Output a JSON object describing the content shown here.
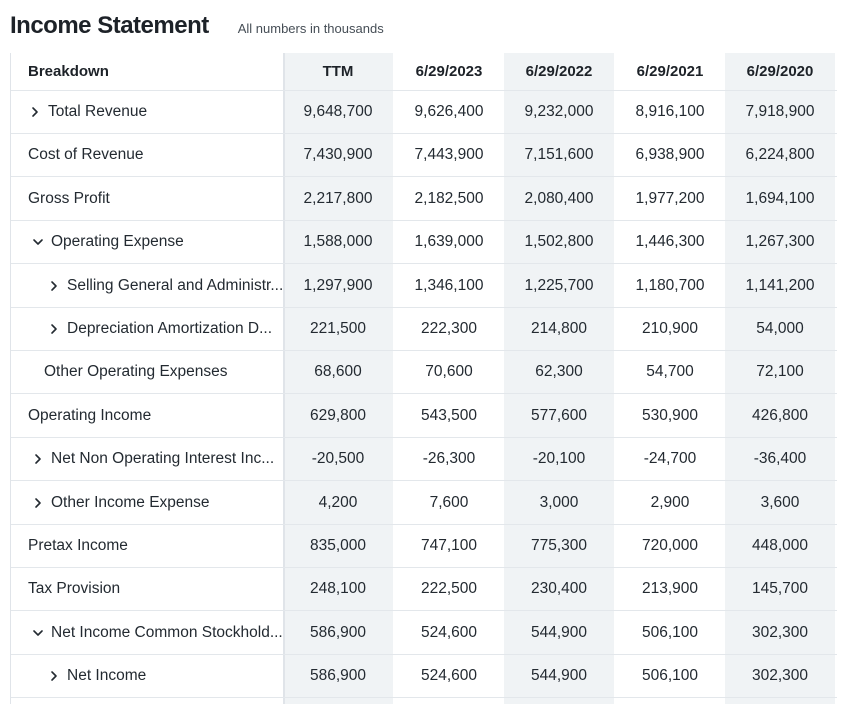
{
  "header": {
    "title": "Income Statement",
    "subtitle": "All numbers in thousands"
  },
  "table": {
    "breakdown_label": "Breakdown",
    "columns": [
      "TTM",
      "6/29/2023",
      "6/29/2022",
      "6/29/2021",
      "6/29/2020"
    ],
    "rows": [
      {
        "label": "Total Revenue",
        "expander": "collapsed",
        "values": [
          "9,648,700",
          "9,626,400",
          "9,232,000",
          "8,916,100",
          "7,918,900"
        ]
      },
      {
        "label": "Cost of Revenue",
        "expander": "none",
        "values": [
          "7,430,900",
          "7,443,900",
          "7,151,600",
          "6,938,900",
          "6,224,800"
        ]
      },
      {
        "label": "Gross Profit",
        "expander": "none",
        "values": [
          "2,217,800",
          "2,182,500",
          "2,080,400",
          "1,977,200",
          "1,694,100"
        ]
      },
      {
        "label": "Operating Expense",
        "expander": "expanded",
        "values": [
          "1,588,000",
          "1,639,000",
          "1,502,800",
          "1,446,300",
          "1,267,300"
        ]
      },
      {
        "label": "Selling General and Administr...",
        "expander": "collapsed",
        "values": [
          "1,297,900",
          "1,346,100",
          "1,225,700",
          "1,180,700",
          "1,141,200"
        ]
      },
      {
        "label": "Depreciation Amortization D...",
        "expander": "collapsed",
        "values": [
          "221,500",
          "222,300",
          "214,800",
          "210,900",
          "54,000"
        ]
      },
      {
        "label": "Other Operating Expenses",
        "expander": "none",
        "values": [
          "68,600",
          "70,600",
          "62,300",
          "54,700",
          "72,100"
        ]
      },
      {
        "label": "Operating Income",
        "expander": "none",
        "values": [
          "629,800",
          "543,500",
          "577,600",
          "530,900",
          "426,800"
        ]
      },
      {
        "label": "Net Non Operating Interest Inc...",
        "expander": "collapsed",
        "values": [
          "-20,500",
          "-26,300",
          "-20,100",
          "-24,700",
          "-36,400"
        ]
      },
      {
        "label": "Other Income Expense",
        "expander": "collapsed",
        "values": [
          "4,200",
          "7,600",
          "3,000",
          "2,900",
          "3,600"
        ]
      },
      {
        "label": "Pretax Income",
        "expander": "none",
        "values": [
          "835,000",
          "747,100",
          "775,300",
          "720,000",
          "448,000"
        ]
      },
      {
        "label": "Tax Provision",
        "expander": "none",
        "values": [
          "248,100",
          "222,500",
          "230,400",
          "213,900",
          "145,700"
        ]
      },
      {
        "label": "Net Income Common Stockhold...",
        "expander": "expanded",
        "values": [
          "586,900",
          "524,600",
          "544,900",
          "506,100",
          "302,300"
        ]
      },
      {
        "label": "Net Income",
        "expander": "collapsed",
        "values": [
          "586,900",
          "524,600",
          "544,900",
          "506,100",
          "302,300"
        ]
      }
    ]
  }
}
